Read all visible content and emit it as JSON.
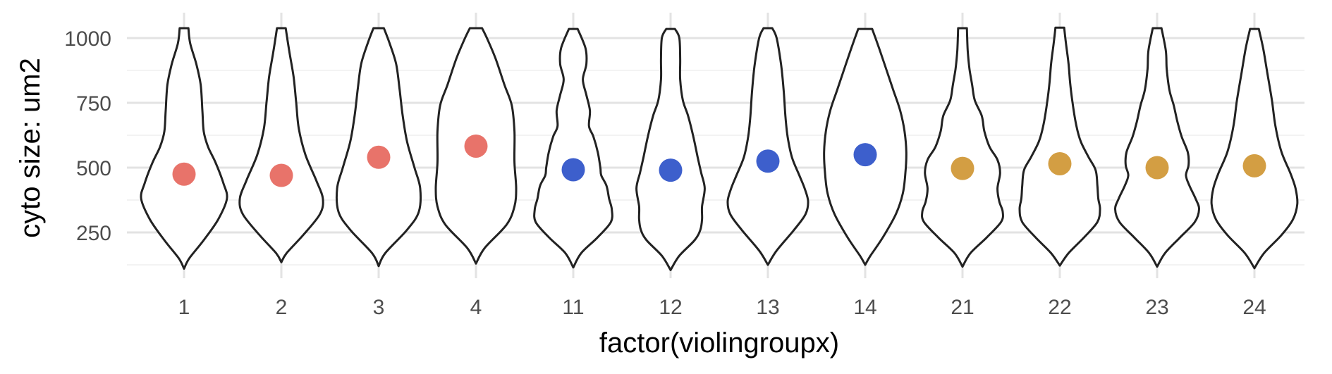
{
  "chart_data": {
    "type": "violin",
    "xlabel": "factor(violingroupx)",
    "ylabel": "cyto size: um2",
    "categories": [
      "1",
      "2",
      "3",
      "4",
      "11",
      "12",
      "13",
      "14",
      "21",
      "22",
      "23",
      "24"
    ],
    "y_ticks": [
      250,
      500,
      750,
      1000
    ],
    "ylim": [
      85,
      1070
    ],
    "grid": true,
    "legend": "none",
    "series": [
      {
        "values": [
          475,
          470,
          540,
          583,
          492,
          490,
          525,
          550,
          497,
          515,
          500,
          507
        ],
        "colors": [
          "#E8736A",
          "#E8736A",
          "#E8736A",
          "#E8736A",
          "#3D5FCC",
          "#3D5FCC",
          "#3D5FCC",
          "#3D5FCC",
          "#D39E43",
          "#D39E43",
          "#D39E43",
          "#D39E43"
        ]
      }
    ],
    "violins": [
      {
        "min": 110,
        "max": 1038,
        "profile": [
          [
            110,
            0.0
          ],
          [
            150,
            0.12
          ],
          [
            220,
            0.45
          ],
          [
            300,
            0.78
          ],
          [
            380,
            0.98
          ],
          [
            440,
            0.9
          ],
          [
            520,
            0.72
          ],
          [
            580,
            0.55
          ],
          [
            640,
            0.45
          ],
          [
            720,
            0.42
          ],
          [
            820,
            0.38
          ],
          [
            900,
            0.28
          ],
          [
            980,
            0.14
          ],
          [
            1038,
            0.1
          ]
        ]
      },
      {
        "min": 135,
        "max": 1038,
        "profile": [
          [
            135,
            0.0
          ],
          [
            170,
            0.12
          ],
          [
            240,
            0.5
          ],
          [
            320,
            0.88
          ],
          [
            380,
            0.95
          ],
          [
            450,
            0.8
          ],
          [
            550,
            0.55
          ],
          [
            650,
            0.4
          ],
          [
            750,
            0.34
          ],
          [
            850,
            0.28
          ],
          [
            950,
            0.18
          ],
          [
            1038,
            0.1
          ]
        ]
      },
      {
        "min": 120,
        "max": 1038,
        "profile": [
          [
            120,
            0.0
          ],
          [
            170,
            0.15
          ],
          [
            260,
            0.65
          ],
          [
            330,
            0.92
          ],
          [
            420,
            0.95
          ],
          [
            500,
            0.82
          ],
          [
            600,
            0.65
          ],
          [
            700,
            0.55
          ],
          [
            800,
            0.48
          ],
          [
            900,
            0.4
          ],
          [
            980,
            0.25
          ],
          [
            1038,
            0.12
          ]
        ]
      },
      {
        "min": 130,
        "max": 1038,
        "profile": [
          [
            130,
            0.0
          ],
          [
            190,
            0.2
          ],
          [
            280,
            0.7
          ],
          [
            350,
            0.88
          ],
          [
            420,
            0.92
          ],
          [
            520,
            0.88
          ],
          [
            640,
            0.88
          ],
          [
            740,
            0.82
          ],
          [
            820,
            0.65
          ],
          [
            920,
            0.45
          ],
          [
            1000,
            0.25
          ],
          [
            1038,
            0.14
          ]
        ]
      },
      {
        "min": 115,
        "max": 1035,
        "profile": [
          [
            115,
            0.0
          ],
          [
            170,
            0.18
          ],
          [
            230,
            0.55
          ],
          [
            290,
            0.86
          ],
          [
            340,
            0.88
          ],
          [
            380,
            0.82
          ],
          [
            430,
            0.76
          ],
          [
            470,
            0.64
          ],
          [
            500,
            0.62
          ],
          [
            560,
            0.56
          ],
          [
            620,
            0.46
          ],
          [
            660,
            0.36
          ],
          [
            720,
            0.38
          ],
          [
            780,
            0.3
          ],
          [
            840,
            0.22
          ],
          [
            900,
            0.3
          ],
          [
            960,
            0.28
          ],
          [
            1035,
            0.1
          ]
        ]
      },
      {
        "min": 105,
        "max": 1035,
        "profile": [
          [
            105,
            0.0
          ],
          [
            160,
            0.2
          ],
          [
            220,
            0.55
          ],
          [
            260,
            0.68
          ],
          [
            300,
            0.72
          ],
          [
            350,
            0.72
          ],
          [
            420,
            0.78
          ],
          [
            480,
            0.7
          ],
          [
            540,
            0.62
          ],
          [
            620,
            0.52
          ],
          [
            700,
            0.4
          ],
          [
            760,
            0.28
          ],
          [
            840,
            0.22
          ],
          [
            920,
            0.22
          ],
          [
            1000,
            0.2
          ],
          [
            1035,
            0.1
          ]
        ]
      },
      {
        "min": 125,
        "max": 1038,
        "profile": [
          [
            125,
            0.0
          ],
          [
            180,
            0.2
          ],
          [
            260,
            0.6
          ],
          [
            320,
            0.86
          ],
          [
            370,
            0.92
          ],
          [
            420,
            0.84
          ],
          [
            470,
            0.72
          ],
          [
            540,
            0.55
          ],
          [
            620,
            0.45
          ],
          [
            700,
            0.4
          ],
          [
            800,
            0.36
          ],
          [
            900,
            0.3
          ],
          [
            1000,
            0.2
          ],
          [
            1038,
            0.1
          ]
        ]
      },
      {
        "min": 125,
        "max": 1035,
        "profile": [
          [
            125,
            0.0
          ],
          [
            160,
            0.12
          ],
          [
            230,
            0.4
          ],
          [
            320,
            0.7
          ],
          [
            400,
            0.86
          ],
          [
            480,
            0.92
          ],
          [
            560,
            0.94
          ],
          [
            640,
            0.9
          ],
          [
            720,
            0.8
          ],
          [
            800,
            0.64
          ],
          [
            880,
            0.48
          ],
          [
            960,
            0.32
          ],
          [
            1035,
            0.16
          ]
        ]
      },
      {
        "min": 118,
        "max": 1038,
        "profile": [
          [
            118,
            0.0
          ],
          [
            170,
            0.18
          ],
          [
            230,
            0.55
          ],
          [
            290,
            0.88
          ],
          [
            330,
            0.92
          ],
          [
            370,
            0.84
          ],
          [
            420,
            0.8
          ],
          [
            480,
            0.86
          ],
          [
            530,
            0.8
          ],
          [
            580,
            0.62
          ],
          [
            640,
            0.5
          ],
          [
            700,
            0.44
          ],
          [
            760,
            0.28
          ],
          [
            820,
            0.22
          ],
          [
            880,
            0.16
          ],
          [
            950,
            0.12
          ],
          [
            1038,
            0.1
          ]
        ]
      },
      {
        "min": 122,
        "max": 1040,
        "profile": [
          [
            122,
            0.0
          ],
          [
            170,
            0.2
          ],
          [
            230,
            0.55
          ],
          [
            290,
            0.86
          ],
          [
            340,
            0.92
          ],
          [
            380,
            0.88
          ],
          [
            430,
            0.86
          ],
          [
            490,
            0.82
          ],
          [
            540,
            0.66
          ],
          [
            600,
            0.48
          ],
          [
            660,
            0.38
          ],
          [
            740,
            0.3
          ],
          [
            820,
            0.24
          ],
          [
            900,
            0.2
          ],
          [
            980,
            0.14
          ],
          [
            1040,
            0.1
          ]
        ]
      },
      {
        "min": 118,
        "max": 1038,
        "profile": [
          [
            118,
            0.0
          ],
          [
            170,
            0.18
          ],
          [
            230,
            0.52
          ],
          [
            290,
            0.86
          ],
          [
            340,
            0.96
          ],
          [
            380,
            0.88
          ],
          [
            430,
            0.74
          ],
          [
            470,
            0.66
          ],
          [
            510,
            0.72
          ],
          [
            560,
            0.7
          ],
          [
            620,
            0.56
          ],
          [
            680,
            0.46
          ],
          [
            740,
            0.38
          ],
          [
            800,
            0.28
          ],
          [
            880,
            0.22
          ],
          [
            950,
            0.2
          ],
          [
            1038,
            0.1
          ]
        ]
      },
      {
        "min": 112,
        "max": 1035,
        "profile": [
          [
            112,
            0.0
          ],
          [
            170,
            0.22
          ],
          [
            240,
            0.62
          ],
          [
            300,
            0.88
          ],
          [
            360,
            0.98
          ],
          [
            420,
            0.94
          ],
          [
            480,
            0.82
          ],
          [
            560,
            0.62
          ],
          [
            660,
            0.48
          ],
          [
            760,
            0.4
          ],
          [
            860,
            0.3
          ],
          [
            960,
            0.2
          ],
          [
            1035,
            0.1
          ]
        ]
      }
    ]
  }
}
